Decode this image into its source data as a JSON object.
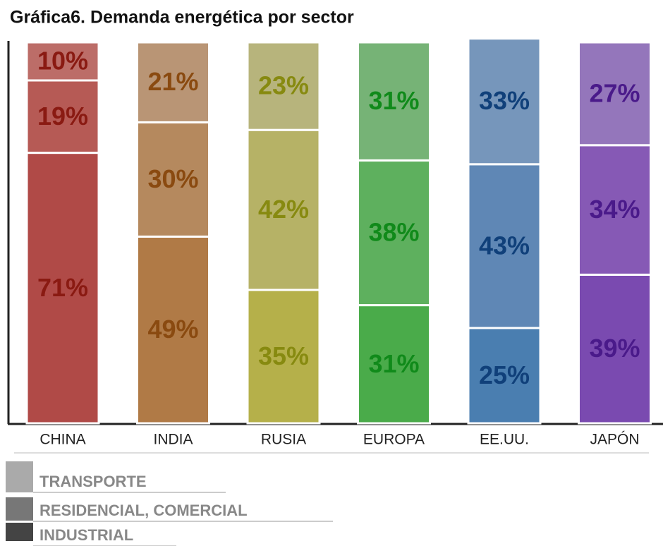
{
  "chart_data": {
    "type": "stacked_bar",
    "title": "Gráfica6. Demanda energética por sector",
    "categories": [
      "CHINA",
      "INDIA",
      "RUSIA",
      "EUROPA",
      "EE.UU.",
      "JAPÓN"
    ],
    "ylim": [
      0,
      100
    ],
    "label_colors": [
      "#8a1a12",
      "#8a4a10",
      "#878a10",
      "#108a1a",
      "#10407a",
      "#4a1a8a"
    ],
    "series": [
      {
        "name": "INDUSTRIAL",
        "color": "#444444",
        "values": [
          71,
          49,
          35,
          31,
          25,
          39
        ],
        "value_labels": [
          "71%",
          "49%",
          "35%",
          "31%",
          "25%",
          "39%"
        ],
        "bar_colors": [
          "#b04a47",
          "#b07a46",
          "#b5b04a",
          "#4aab4a",
          "#4a7eb0",
          "#7a4ab0"
        ]
      },
      {
        "name": "RESIDENCIAL, COMERCIAL",
        "color": "#777777",
        "values": [
          19,
          30,
          42,
          38,
          43,
          34
        ],
        "value_labels": [
          "19%",
          "30%",
          "42%",
          "38%",
          "43%",
          "34%"
        ],
        "bar_colors": [
          "#b65a55",
          "#b5895e",
          "#b6b266",
          "#5eb05e",
          "#5f87b5",
          "#8659b5"
        ]
      },
      {
        "name": "TRANSPORTE",
        "color": "#aaaaaa",
        "values": [
          10,
          21,
          23,
          31,
          33,
          27
        ],
        "value_labels": [
          "10%",
          "21%",
          "23%",
          "31%",
          "33%",
          "27%"
        ],
        "bar_colors": [
          "#bc6d68",
          "#b99575",
          "#b7b47c",
          "#76b376",
          "#7696bb",
          "#9476bb"
        ]
      }
    ]
  }
}
